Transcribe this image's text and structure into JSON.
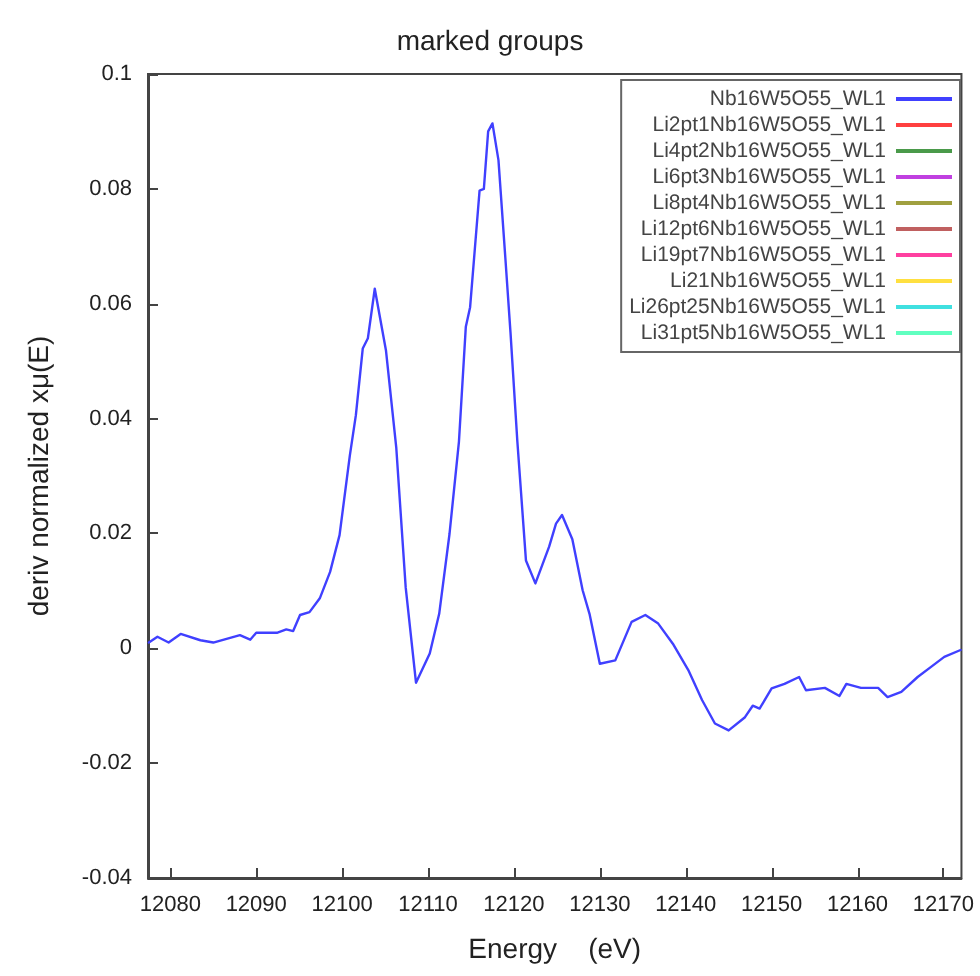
{
  "chart_data": {
    "type": "line",
    "title": "marked groups",
    "xlabel": "Energy    (eV)",
    "ylabel": "deriv normalized xμ(E)",
    "xlim": [
      12077.4,
      12172.1
    ],
    "xticks": [
      12080,
      12090,
      12100,
      12110,
      12120,
      12130,
      12140,
      12150,
      12160,
      12170
    ],
    "ylim": [
      -0.04,
      0.1
    ],
    "yticks": [
      -0.04,
      -0.02,
      0,
      0.02,
      0.04,
      0.06,
      0.08,
      0.1
    ],
    "x": [
      12077.5,
      12078.5,
      12079.8,
      12081.2,
      12083.5,
      12085.0,
      12088.1,
      12089.3,
      12090.0,
      12092.4,
      12093.5,
      12094.3,
      12095.1,
      12096.2,
      12097.4,
      12098.6,
      12099.7,
      12100.9,
      12101.6,
      12102.4,
      12103.0,
      12103.8,
      12105.1,
      12106.3,
      12107.4,
      12108.6,
      12110.2,
      12111.3,
      12112.5,
      12113.6,
      12114.4,
      12114.9,
      12116.0,
      12116.5,
      12117.0,
      12117.5,
      12118.2,
      12119.0,
      12119.6,
      12120.4,
      12121.4,
      12122.5,
      12124.1,
      12124.9,
      12125.6,
      12126.8,
      12128.0,
      12128.8,
      12130.0,
      12131.8,
      12133.7,
      12135.3,
      12136.8,
      12138.5,
      12140.3,
      12141.9,
      12143.4,
      12145.0,
      12146.9,
      12147.8,
      12148.6,
      12150.0,
      12151.5,
      12153.2,
      12154.0,
      12156.2,
      12157.9,
      12158.7,
      12160.4,
      12162.4,
      12163.5,
      12165.1,
      12167.0,
      12168.6,
      12170.1,
      12172.0
    ],
    "series": [
      {
        "name": "Nb16W5O55_WL1",
        "color": "#4040ff",
        "values": [
          0.001,
          0.002,
          0.001,
          0.0025,
          0.0014,
          0.001,
          0.0023,
          0.0015,
          0.0027,
          0.0027,
          0.0033,
          0.003,
          0.0058,
          0.0063,
          0.0087,
          0.0133,
          0.0197,
          0.0336,
          0.0406,
          0.0522,
          0.054,
          0.0626,
          0.0519,
          0.035,
          0.0106,
          -0.006,
          -0.0009,
          0.006,
          0.0199,
          0.036,
          0.056,
          0.0594,
          0.0797,
          0.08,
          0.09,
          0.0914,
          0.085,
          0.068,
          0.055,
          0.036,
          0.0153,
          0.0113,
          0.0177,
          0.0217,
          0.0232,
          0.019,
          0.0101,
          0.006,
          -0.0027,
          -0.0021,
          0.0046,
          0.0058,
          0.0043,
          0.0008,
          -0.0038,
          -0.009,
          -0.0131,
          -0.0143,
          -0.012,
          -0.01,
          -0.0105,
          -0.007,
          -0.0062,
          -0.005,
          -0.0073,
          -0.0069,
          -0.0083,
          -0.0062,
          -0.0069,
          -0.0069,
          -0.0085,
          -0.0076,
          -0.005,
          -0.0032,
          -0.0015,
          -0.0003
        ]
      },
      {
        "name": "Li2pt1Nb16W5O55_WL1",
        "color": "#ff4040",
        "values": [
          null,
          null,
          null,
          null,
          null,
          null,
          null,
          null,
          null,
          null,
          null,
          null,
          null,
          null,
          null,
          null,
          null,
          null,
          null,
          null,
          null,
          null,
          null,
          null,
          null,
          null,
          null,
          null,
          null,
          null,
          null,
          null,
          null,
          null,
          null,
          null,
          null,
          null,
          null,
          null,
          null,
          null,
          null,
          null,
          null,
          null,
          null,
          null,
          null,
          null,
          null,
          null,
          null,
          null,
          null,
          null,
          null,
          null,
          null,
          null,
          null,
          null,
          null,
          null,
          null,
          null,
          null,
          null,
          null,
          null,
          null,
          null,
          null,
          null,
          null,
          null
        ]
      },
      {
        "name": "Li4pt2Nb16W5O55_WL1",
        "color": "#4a9a4a",
        "values": [
          null,
          null,
          null,
          null,
          null,
          null,
          null,
          null,
          null,
          null,
          null,
          null,
          null,
          null,
          null,
          null,
          null,
          null,
          null,
          null,
          null,
          null,
          null,
          null,
          null,
          null,
          null,
          null,
          null,
          null,
          null,
          null,
          null,
          null,
          null,
          null,
          null,
          null,
          null,
          null,
          null,
          null,
          null,
          null,
          null,
          null,
          null,
          null,
          null,
          null,
          null,
          null,
          null,
          null,
          null,
          null,
          null,
          null,
          null,
          null,
          null,
          null,
          null,
          null,
          null,
          null,
          null,
          null,
          null,
          null,
          null,
          null,
          null,
          null,
          null,
          null
        ]
      },
      {
        "name": "Li6pt3Nb16W5O55_WL1",
        "color": "#c040e0",
        "values": [
          null,
          null,
          null,
          null,
          null,
          null,
          null,
          null,
          null,
          null,
          null,
          null,
          null,
          null,
          null,
          null,
          null,
          null,
          null,
          null,
          null,
          null,
          null,
          null,
          null,
          null,
          null,
          null,
          null,
          null,
          null,
          null,
          null,
          null,
          null,
          null,
          null,
          null,
          null,
          null,
          null,
          null,
          null,
          null,
          null,
          null,
          null,
          null,
          null,
          null,
          null,
          null,
          null,
          null,
          null,
          null,
          null,
          null,
          null,
          null,
          null,
          null,
          null,
          null,
          null,
          null,
          null,
          null,
          null,
          null,
          null,
          null,
          null,
          null,
          null,
          null
        ]
      },
      {
        "name": "Li8pt4Nb16W5O55_WL1",
        "color": "#a0a040",
        "values": [
          null,
          null,
          null,
          null,
          null,
          null,
          null,
          null,
          null,
          null,
          null,
          null,
          null,
          null,
          null,
          null,
          null,
          null,
          null,
          null,
          null,
          null,
          null,
          null,
          null,
          null,
          null,
          null,
          null,
          null,
          null,
          null,
          null,
          null,
          null,
          null,
          null,
          null,
          null,
          null,
          null,
          null,
          null,
          null,
          null,
          null,
          null,
          null,
          null,
          null,
          null,
          null,
          null,
          null,
          null,
          null,
          null,
          null,
          null,
          null,
          null,
          null,
          null,
          null,
          null,
          null,
          null,
          null,
          null,
          null,
          null,
          null,
          null,
          null,
          null,
          null
        ]
      },
      {
        "name": "Li12pt6Nb16W5O55_WL1",
        "color": "#c06060",
        "values": [
          null,
          null,
          null,
          null,
          null,
          null,
          null,
          null,
          null,
          null,
          null,
          null,
          null,
          null,
          null,
          null,
          null,
          null,
          null,
          null,
          null,
          null,
          null,
          null,
          null,
          null,
          null,
          null,
          null,
          null,
          null,
          null,
          null,
          null,
          null,
          null,
          null,
          null,
          null,
          null,
          null,
          null,
          null,
          null,
          null,
          null,
          null,
          null,
          null,
          null,
          null,
          null,
          null,
          null,
          null,
          null,
          null,
          null,
          null,
          null,
          null,
          null,
          null,
          null,
          null,
          null,
          null,
          null,
          null,
          null,
          null,
          null,
          null,
          null,
          null,
          null
        ]
      },
      {
        "name": "Li19pt7Nb16W5O55_WL1",
        "color": "#ff40a0",
        "values": [
          null,
          null,
          null,
          null,
          null,
          null,
          null,
          null,
          null,
          null,
          null,
          null,
          null,
          null,
          null,
          null,
          null,
          null,
          null,
          null,
          null,
          null,
          null,
          null,
          null,
          null,
          null,
          null,
          null,
          null,
          null,
          null,
          null,
          null,
          null,
          null,
          null,
          null,
          null,
          null,
          null,
          null,
          null,
          null,
          null,
          null,
          null,
          null,
          null,
          null,
          null,
          null,
          null,
          null,
          null,
          null,
          null,
          null,
          null,
          null,
          null,
          null,
          null,
          null,
          null,
          null,
          null,
          null,
          null,
          null,
          null,
          null,
          null,
          null,
          null,
          null
        ]
      },
      {
        "name": "Li21Nb16W5O55_WL1",
        "color": "#ffe040",
        "values": [
          null,
          null,
          null,
          null,
          null,
          null,
          null,
          null,
          null,
          null,
          null,
          null,
          null,
          null,
          null,
          null,
          null,
          null,
          null,
          null,
          null,
          null,
          null,
          null,
          null,
          null,
          null,
          null,
          null,
          null,
          null,
          null,
          null,
          null,
          null,
          null,
          null,
          null,
          null,
          null,
          null,
          null,
          null,
          null,
          null,
          null,
          null,
          null,
          null,
          null,
          null,
          null,
          null,
          null,
          null,
          null,
          null,
          null,
          null,
          null,
          null,
          null,
          null,
          null,
          null,
          null,
          null,
          null,
          null,
          null,
          null,
          null,
          null,
          null,
          null,
          null
        ]
      },
      {
        "name": "Li26pt25Nb16W5O55_WL1",
        "color": "#40e0e0",
        "values": [
          null,
          null,
          null,
          null,
          null,
          null,
          null,
          null,
          null,
          null,
          null,
          null,
          null,
          null,
          null,
          null,
          null,
          null,
          null,
          null,
          null,
          null,
          null,
          null,
          null,
          null,
          null,
          null,
          null,
          null,
          null,
          null,
          null,
          null,
          null,
          null,
          null,
          null,
          null,
          null,
          null,
          null,
          null,
          null,
          null,
          null,
          null,
          null,
          null,
          null,
          null,
          null,
          null,
          null,
          null,
          null,
          null,
          null,
          null,
          null,
          null,
          null,
          null,
          null,
          null,
          null,
          null,
          null,
          null,
          null,
          null,
          null,
          null,
          null,
          null,
          null
        ]
      },
      {
        "name": "Li31pt5Nb16W5O55_WL1",
        "color": "#60ffc0",
        "values": [
          null,
          null,
          null,
          null,
          null,
          null,
          null,
          null,
          null,
          null,
          null,
          null,
          null,
          null,
          null,
          null,
          null,
          null,
          null,
          null,
          null,
          null,
          null,
          null,
          null,
          null,
          null,
          null,
          null,
          null,
          null,
          null,
          null,
          null,
          null,
          null,
          null,
          null,
          null,
          null,
          null,
          null,
          null,
          null,
          null,
          null,
          null,
          null,
          null,
          null,
          null,
          null,
          null,
          null,
          null,
          null,
          null,
          null,
          null,
          null,
          null,
          null,
          null,
          null,
          null,
          null,
          null,
          null,
          null,
          null,
          null,
          null,
          null,
          null,
          null,
          null
        ]
      }
    ],
    "legend": "top right",
    "grid": false,
    "marker": "none",
    "line_style": "solid"
  }
}
